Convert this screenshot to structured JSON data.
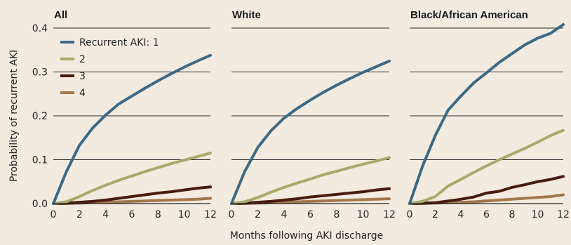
{
  "chart_data": {
    "type": "line",
    "ylabel": "Probability of recurrent AKI",
    "xlabel": "Months following AKI discharge",
    "xlim": [
      0,
      12
    ],
    "ylim": [
      0,
      0.4
    ],
    "x_ticks": [
      "0",
      "2",
      "4",
      "6",
      "8",
      "10",
      "12"
    ],
    "y_ticks": [
      "0.0",
      "0.1",
      "0.2",
      "0.3",
      "0.4"
    ],
    "grid": "horizontal",
    "legend": {
      "placement": "top-left of first panel",
      "entries": [
        "Recurrent AKI: 1",
        "2",
        "3",
        "4"
      ]
    },
    "colors": [
      "#3d6a86",
      "#a6ab6c",
      "#4a1a10",
      "#a4774b"
    ],
    "panels": [
      {
        "title": "All",
        "series": [
          {
            "name": "Recurrent AKI: 1",
            "x": [
              0,
              1,
              2,
              3,
              4,
              5,
              6,
              7,
              8,
              9,
              10,
              11,
              12
            ],
            "values": [
              0,
              0.073,
              0.133,
              0.172,
              0.202,
              0.227,
              0.245,
              0.263,
              0.28,
              0.296,
              0.311,
              0.325,
              0.338
            ]
          },
          {
            "name": "2",
            "x": [
              0,
              1,
              2,
              3,
              4,
              5,
              6,
              7,
              8,
              9,
              10,
              11,
              12
            ],
            "values": [
              0,
              0.004,
              0.016,
              0.03,
              0.042,
              0.053,
              0.063,
              0.073,
              0.082,
              0.091,
              0.099,
              0.107,
              0.115
            ]
          },
          {
            "name": "3",
            "x": [
              0,
              1,
              2,
              3,
              4,
              5,
              6,
              7,
              8,
              9,
              10,
              11,
              12
            ],
            "values": [
              0,
              0.001,
              0.003,
              0.005,
              0.008,
              0.012,
              0.016,
              0.02,
              0.024,
              0.027,
              0.031,
              0.035,
              0.038
            ]
          },
          {
            "name": "4",
            "x": [
              0,
              1,
              2,
              3,
              4,
              5,
              6,
              7,
              8,
              9,
              10,
              11,
              12
            ],
            "values": [
              0,
              0,
              0.001,
              0.002,
              0.003,
              0.004,
              0.005,
              0.006,
              0.007,
              0.008,
              0.009,
              0.01,
              0.012
            ]
          }
        ]
      },
      {
        "title": "White",
        "series": [
          {
            "name": "Recurrent AKI: 1",
            "x": [
              0,
              1,
              2,
              3,
              4,
              5,
              6,
              7,
              8,
              9,
              10,
              11,
              12
            ],
            "values": [
              0,
              0.073,
              0.128,
              0.166,
              0.195,
              0.217,
              0.236,
              0.254,
              0.27,
              0.285,
              0.299,
              0.312,
              0.325
            ]
          },
          {
            "name": "2",
            "x": [
              0,
              1,
              2,
              3,
              4,
              5,
              6,
              7,
              8,
              9,
              10,
              11,
              12
            ],
            "values": [
              0,
              0.004,
              0.014,
              0.026,
              0.037,
              0.047,
              0.056,
              0.066,
              0.074,
              0.082,
              0.09,
              0.097,
              0.105
            ]
          },
          {
            "name": "3",
            "x": [
              0,
              1,
              2,
              3,
              4,
              5,
              6,
              7,
              8,
              9,
              10,
              11,
              12
            ],
            "values": [
              0,
              0.001,
              0.003,
              0.005,
              0.008,
              0.011,
              0.015,
              0.018,
              0.021,
              0.024,
              0.027,
              0.031,
              0.034
            ]
          },
          {
            "name": "4",
            "x": [
              0,
              1,
              2,
              3,
              4,
              5,
              6,
              7,
              8,
              9,
              10,
              11,
              12
            ],
            "values": [
              0,
              0,
              0.001,
              0.002,
              0.003,
              0.004,
              0.005,
              0.006,
              0.007,
              0.008,
              0.009,
              0.01,
              0.011
            ]
          }
        ]
      },
      {
        "title": "Black/African American",
        "series": [
          {
            "name": "Recurrent AKI: 1",
            "x": [
              0,
              1,
              2,
              3,
              4,
              5,
              6,
              7,
              8,
              9,
              10,
              11,
              12
            ],
            "values": [
              0,
              0.085,
              0.155,
              0.213,
              0.245,
              0.275,
              0.298,
              0.322,
              0.342,
              0.362,
              0.377,
              0.388,
              0.408
            ]
          },
          {
            "name": "2",
            "x": [
              0,
              1,
              2,
              3,
              4,
              5,
              6,
              7,
              8,
              9,
              10,
              11,
              12
            ],
            "values": [
              0,
              0.005,
              0.016,
              0.04,
              0.055,
              0.071,
              0.086,
              0.1,
              0.113,
              0.126,
              0.14,
              0.155,
              0.167
            ]
          },
          {
            "name": "3",
            "x": [
              0,
              1,
              2,
              3,
              4,
              5,
              6,
              7,
              8,
              9,
              10,
              11,
              12
            ],
            "values": [
              0,
              0.001,
              0.002,
              0.006,
              0.01,
              0.015,
              0.024,
              0.028,
              0.037,
              0.043,
              0.05,
              0.055,
              0.062
            ]
          },
          {
            "name": "4",
            "x": [
              0,
              1,
              2,
              3,
              4,
              5,
              6,
              7,
              8,
              9,
              10,
              11,
              12
            ],
            "values": [
              0,
              0,
              0.001,
              0.002,
              0.003,
              0.004,
              0.006,
              0.008,
              0.01,
              0.012,
              0.014,
              0.016,
              0.02
            ]
          }
        ]
      }
    ]
  }
}
